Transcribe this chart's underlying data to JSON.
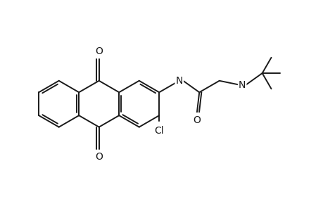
{
  "bg_color": "#ffffff",
  "line_color": "#1a1a1a",
  "line_width": 1.4,
  "font_size": 10,
  "figsize": [
    4.6,
    3.0
  ],
  "dpi": 100,
  "xlim": [
    0,
    10
  ],
  "ylim": [
    0,
    6.5
  ],
  "BL": 0.72,
  "off": 0.075
}
